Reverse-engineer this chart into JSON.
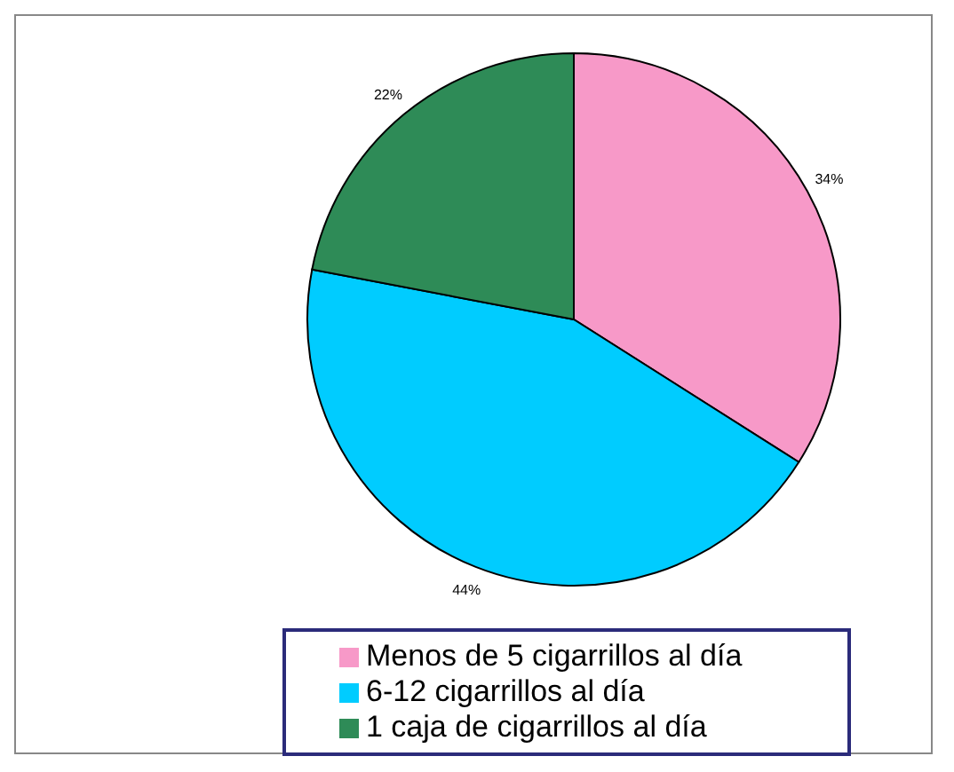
{
  "chart_data": {
    "type": "pie",
    "categories": [
      "Menos de 5 cigarrillos al día",
      "6-12 cigarrillos al día",
      "1 caja de cigarrillos al día"
    ],
    "values": [
      34,
      44,
      22
    ],
    "colors": [
      "#f799c8",
      "#00ccff",
      "#2e8b57"
    ],
    "value_labels": [
      "34%",
      "44%",
      "22%"
    ],
    "legend": "bottom"
  }
}
